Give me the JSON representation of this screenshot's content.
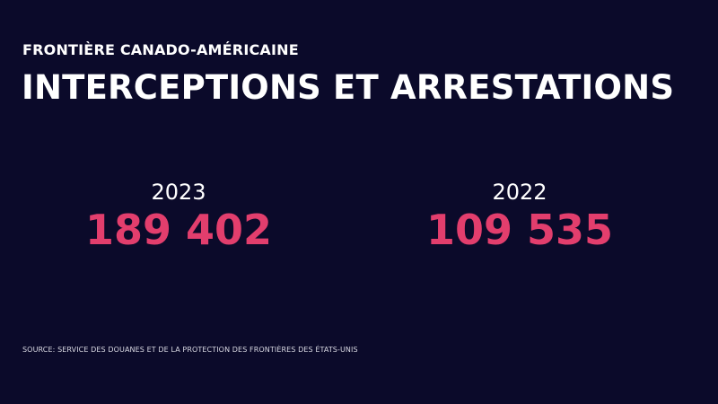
{
  "header": {
    "kicker": "FRONTIÈRE CANADO-AMÉRICAINE",
    "title": "INTERCEPTIONS ET ARRESTATIONS"
  },
  "stats": [
    {
      "year": "2023",
      "value": "189 402"
    },
    {
      "year": "2022",
      "value": "109 535"
    }
  ],
  "footer": {
    "source": "SOURCE: SERVICE DES DOUANES ET DE LA PROTECTION DES FRONTIÈRES DES ÉTATS-UNIS"
  },
  "colors": {
    "background": "#0b0a2a",
    "text": "#ffffff",
    "accent": "#e23e6d"
  }
}
